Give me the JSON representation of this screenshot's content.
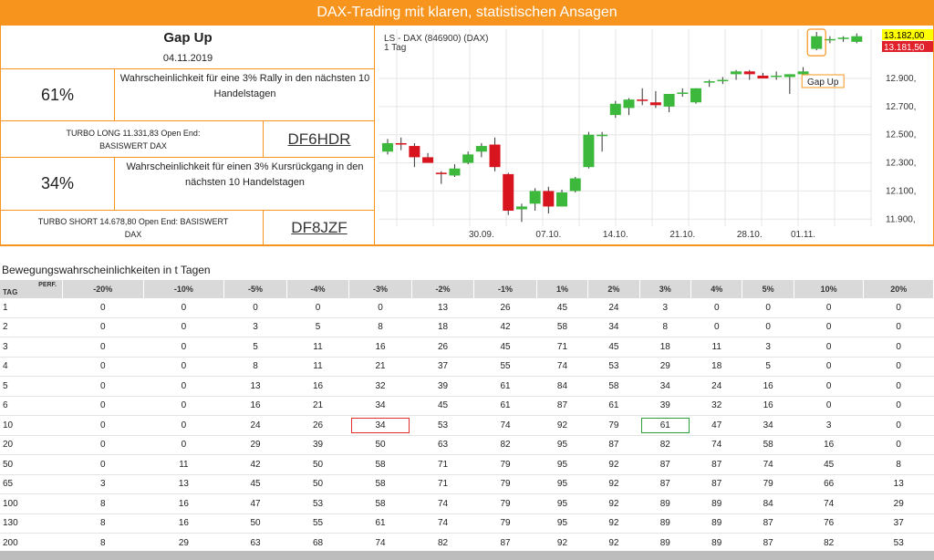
{
  "banner": "DAX-Trading mit klaren, statistischen Ansagen",
  "signal": {
    "title": "Gap Up",
    "date": "04.11.2019",
    "long_pct": "61%",
    "long_desc": "Wahrscheinlichkeit für eine 3% Rally in den nächsten 10 Handelstagen",
    "turbo_long": "TURBO LONG 11.331,83 Open End: BASISWERT DAX",
    "turbo_long_isin": "DF6HDR",
    "short_pct": "34%",
    "short_desc": "Wahrscheinlichkeit für einen 3% Kursrückgang in den nächsten 10 Handelstagen",
    "turbo_short": "TURBO SHORT 14.678,80 Open End: BASISWERT DAX",
    "turbo_short_isin": "DF8JZF"
  },
  "chart_data": {
    "type": "candlestick",
    "title": "LS - DAX (846900) (DAX)",
    "subtitle": "1 Tag",
    "x_tick_labels": [
      "30.09.",
      "07.10.",
      "14.10.",
      "21.10.",
      "28.10.",
      "01.11."
    ],
    "y_tick_labels": [
      "11.900,",
      "12.100,",
      "12.300,",
      "12.500,",
      "12.700,",
      "12.900,"
    ],
    "ylim": [
      11850,
      13250
    ],
    "price_tags": [
      {
        "label": "13.182,00",
        "color": "#ffff00"
      },
      {
        "label": "13.181,50",
        "color": "#e0202a"
      }
    ],
    "annotation": "Gap Up",
    "candles": [
      {
        "o": 12380,
        "h": 12470,
        "l": 12360,
        "c": 12440
      },
      {
        "o": 12440,
        "h": 12480,
        "l": 12390,
        "c": 12430
      },
      {
        "o": 12420,
        "h": 12440,
        "l": 12270,
        "c": 12340
      },
      {
        "o": 12340,
        "h": 12370,
        "l": 12300,
        "c": 12300
      },
      {
        "o": 12230,
        "h": 12240,
        "l": 12150,
        "c": 12220
      },
      {
        "o": 12210,
        "h": 12290,
        "l": 12200,
        "c": 12260
      },
      {
        "o": 12300,
        "h": 12380,
        "l": 12290,
        "c": 12360
      },
      {
        "o": 12380,
        "h": 12440,
        "l": 12340,
        "c": 12420
      },
      {
        "o": 12430,
        "h": 12480,
        "l": 12240,
        "c": 12270
      },
      {
        "o": 12220,
        "h": 12230,
        "l": 11930,
        "c": 11960
      },
      {
        "o": 11970,
        "h": 12010,
        "l": 11880,
        "c": 11990
      },
      {
        "o": 12010,
        "h": 12120,
        "l": 11960,
        "c": 12100
      },
      {
        "o": 12100,
        "h": 12130,
        "l": 11940,
        "c": 11990
      },
      {
        "o": 11990,
        "h": 12110,
        "l": 11990,
        "c": 12090
      },
      {
        "o": 12100,
        "h": 12200,
        "l": 12090,
        "c": 12190
      },
      {
        "o": 12270,
        "h": 12520,
        "l": 12260,
        "c": 12500
      },
      {
        "o": 12490,
        "h": 12520,
        "l": 12380,
        "c": 12500
      },
      {
        "o": 12640,
        "h": 12740,
        "l": 12620,
        "c": 12720
      },
      {
        "o": 12690,
        "h": 12760,
        "l": 12640,
        "c": 12750
      },
      {
        "o": 12750,
        "h": 12830,
        "l": 12710,
        "c": 12740
      },
      {
        "o": 12730,
        "h": 12810,
        "l": 12690,
        "c": 12710
      },
      {
        "o": 12700,
        "h": 12790,
        "l": 12660,
        "c": 12790
      },
      {
        "o": 12790,
        "h": 12830,
        "l": 12770,
        "c": 12800
      },
      {
        "o": 12730,
        "h": 12830,
        "l": 12720,
        "c": 12830
      },
      {
        "o": 12870,
        "h": 12890,
        "l": 12840,
        "c": 12880
      },
      {
        "o": 12880,
        "h": 12910,
        "l": 12860,
        "c": 12890
      },
      {
        "o": 12930,
        "h": 12960,
        "l": 12890,
        "c": 12950
      },
      {
        "o": 12950,
        "h": 12960,
        "l": 12890,
        "c": 12930
      },
      {
        "o": 12920,
        "h": 12940,
        "l": 12900,
        "c": 12900
      },
      {
        "o": 12920,
        "h": 12950,
        "l": 12890,
        "c": 12920
      },
      {
        "o": 12910,
        "h": 12930,
        "l": 12790,
        "c": 12930
      },
      {
        "o": 12930,
        "h": 12980,
        "l": 12900,
        "c": 12950
      },
      {
        "o": 13110,
        "h": 13230,
        "l": 13100,
        "c": 13200
      },
      {
        "o": 13180,
        "h": 13200,
        "l": 13150,
        "c": 13180
      },
      {
        "o": 13180,
        "h": 13200,
        "l": 13160,
        "c": 13190
      },
      {
        "o": 13160,
        "h": 13220,
        "l": 13150,
        "c": 13200
      }
    ],
    "colors": {
      "up": "#3cb83c",
      "down": "#d8141e"
    }
  },
  "table": {
    "title": "Bewegungswahrscheinlichkeiten in t Tagen",
    "corner_top": "PERF.",
    "corner_bottom": "TAG",
    "headers": [
      "-20%",
      "-10%",
      "-5%",
      "-4%",
      "-3%",
      "-2%",
      "-1%",
      "1%",
      "2%",
      "3%",
      "4%",
      "5%",
      "10%",
      "20%"
    ],
    "rows": [
      {
        "tag": "1",
        "values": [
          "0",
          "0",
          "0",
          "0",
          "0",
          "13",
          "26",
          "45",
          "24",
          "3",
          "0",
          "0",
          "0",
          "0"
        ]
      },
      {
        "tag": "2",
        "values": [
          "0",
          "0",
          "3",
          "5",
          "8",
          "18",
          "42",
          "58",
          "34",
          "8",
          "0",
          "0",
          "0",
          "0"
        ]
      },
      {
        "tag": "3",
        "values": [
          "0",
          "0",
          "5",
          "11",
          "16",
          "26",
          "45",
          "71",
          "45",
          "18",
          "11",
          "3",
          "0",
          "0"
        ]
      },
      {
        "tag": "4",
        "values": [
          "0",
          "0",
          "8",
          "11",
          "21",
          "37",
          "55",
          "74",
          "53",
          "29",
          "18",
          "5",
          "0",
          "0"
        ]
      },
      {
        "tag": "5",
        "values": [
          "0",
          "0",
          "13",
          "16",
          "32",
          "39",
          "61",
          "84",
          "58",
          "34",
          "24",
          "16",
          "0",
          "0"
        ]
      },
      {
        "tag": "6",
        "values": [
          "0",
          "0",
          "16",
          "21",
          "34",
          "45",
          "61",
          "87",
          "61",
          "39",
          "32",
          "16",
          "0",
          "0"
        ]
      },
      {
        "tag": "10",
        "values": [
          "0",
          "0",
          "24",
          "26",
          "34",
          "53",
          "74",
          "92",
          "79",
          "61",
          "47",
          "34",
          "3",
          "0"
        ]
      },
      {
        "tag": "20",
        "values": [
          "0",
          "0",
          "29",
          "39",
          "50",
          "63",
          "82",
          "95",
          "87",
          "82",
          "74",
          "58",
          "16",
          "0"
        ]
      },
      {
        "tag": "50",
        "values": [
          "0",
          "11",
          "42",
          "50",
          "58",
          "71",
          "79",
          "95",
          "92",
          "87",
          "87",
          "74",
          "45",
          "8"
        ]
      },
      {
        "tag": "65",
        "values": [
          "3",
          "13",
          "45",
          "50",
          "58",
          "71",
          "79",
          "95",
          "92",
          "87",
          "87",
          "79",
          "66",
          "13"
        ]
      },
      {
        "tag": "100",
        "values": [
          "8",
          "16",
          "47",
          "53",
          "58",
          "74",
          "79",
          "95",
          "92",
          "89",
          "89",
          "84",
          "74",
          "29"
        ]
      },
      {
        "tag": "130",
        "values": [
          "8",
          "16",
          "50",
          "55",
          "61",
          "74",
          "79",
          "95",
          "92",
          "89",
          "89",
          "87",
          "76",
          "37"
        ]
      },
      {
        "tag": "200",
        "values": [
          "8",
          "29",
          "63",
          "68",
          "74",
          "82",
          "87",
          "92",
          "92",
          "89",
          "89",
          "87",
          "82",
          "53"
        ]
      }
    ]
  }
}
